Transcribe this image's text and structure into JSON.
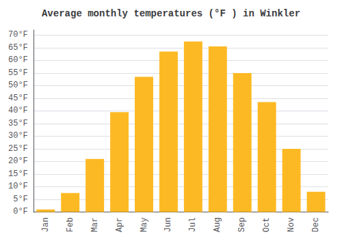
{
  "chart_data": {
    "type": "bar",
    "title": "Average monthly temperatures (°F ) in Winkler",
    "categories": [
      "Jan",
      "Feb",
      "Mar",
      "Apr",
      "May",
      "Jun",
      "Jul",
      "Aug",
      "Sep",
      "Oct",
      "Nov",
      "Dec"
    ],
    "values": [
      1,
      7.5,
      21,
      39.5,
      53.5,
      63.5,
      67.5,
      65.5,
      55,
      43.5,
      25,
      8
    ],
    "color": "#FDB924",
    "ylim": [
      0,
      72
    ],
    "yticks": [
      {
        "value": 0,
        "label": "0°F"
      },
      {
        "value": 5,
        "label": "5°F"
      },
      {
        "value": 10,
        "label": "10°F"
      },
      {
        "value": 15,
        "label": "15°F"
      },
      {
        "value": 20,
        "label": "20°F"
      },
      {
        "value": 25,
        "label": "25°F"
      },
      {
        "value": 30,
        "label": "30°F"
      },
      {
        "value": 35,
        "label": "35°F"
      },
      {
        "value": 40,
        "label": "40°F"
      },
      {
        "value": 45,
        "label": "45°F"
      },
      {
        "value": 50,
        "label": "50°F"
      },
      {
        "value": 55,
        "label": "55°F"
      },
      {
        "value": 60,
        "label": "60°F"
      },
      {
        "value": 65,
        "label": "65°F"
      },
      {
        "value": 70,
        "label": "70°F"
      }
    ],
    "grid": true
  }
}
